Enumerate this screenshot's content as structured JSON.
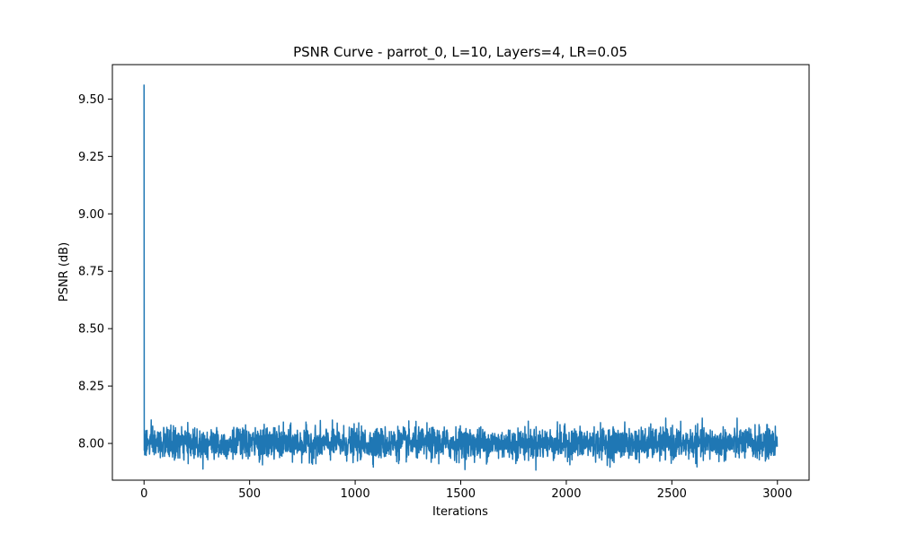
{
  "chart_data": {
    "type": "line",
    "title": "PSNR Curve - parrot_0, L=10, Layers=4, LR=0.05",
    "xlabel": "Iterations",
    "ylabel": "PSNR (dB)",
    "xlim": [
      -150,
      3150
    ],
    "ylim": [
      7.84,
      9.65
    ],
    "x_ticks": [
      0,
      500,
      1000,
      1500,
      2000,
      2500,
      3000
    ],
    "x_tick_labels": [
      "0",
      "500",
      "1000",
      "1500",
      "2000",
      "2500",
      "3000"
    ],
    "y_ticks": [
      8.0,
      8.25,
      8.5,
      8.75,
      9.0,
      9.25,
      9.5
    ],
    "y_tick_labels": [
      "8.00",
      "8.25",
      "8.50",
      "8.75",
      "9.00",
      "9.25",
      "9.50"
    ],
    "grid": false,
    "legend": "none",
    "series": [
      {
        "color": "#1f77b4",
        "points": [
          [
            0,
            9.56
          ],
          [
            1,
            7.97
          ],
          [
            2,
            8.02
          ],
          [
            3,
            7.95
          ],
          [
            4,
            8.04
          ]
        ],
        "tail": {
          "x_start": 5,
          "x_end": 2999,
          "step": 1,
          "mean": 8.0,
          "min": 7.88,
          "max": 8.11
        }
      }
    ]
  }
}
